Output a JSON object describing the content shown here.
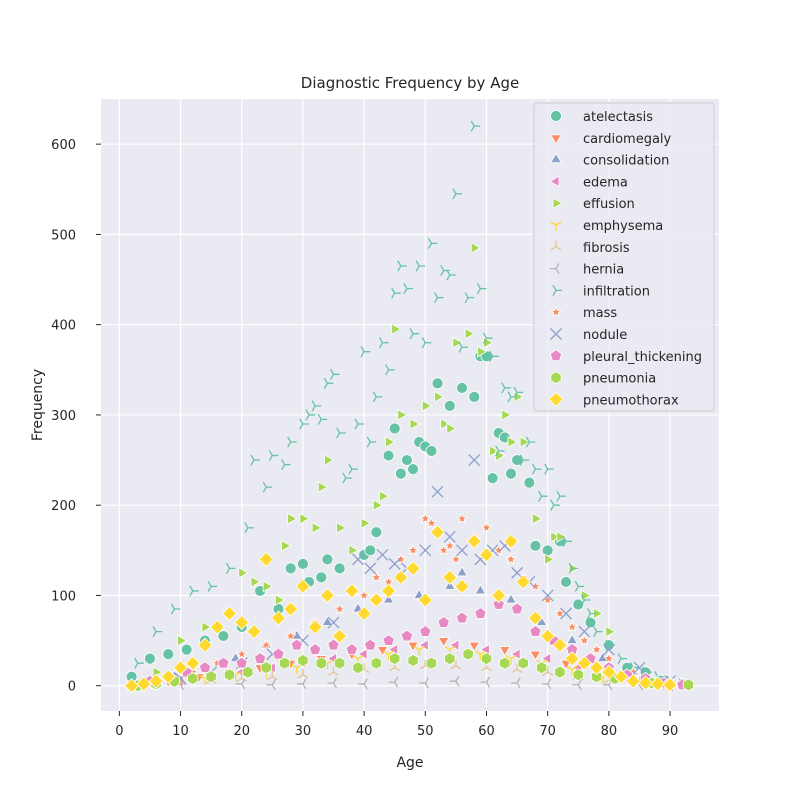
{
  "chart_data": {
    "type": "scatter",
    "title": "Diagnostic Frequency by Age",
    "xlabel": "Age",
    "ylabel": "Frequency",
    "xlim": [
      -3,
      98
    ],
    "ylim": [
      -28,
      650
    ],
    "xticks": [
      0,
      10,
      20,
      30,
      40,
      50,
      60,
      70,
      80,
      90
    ],
    "yticks": [
      0,
      100,
      200,
      300,
      400,
      500,
      600
    ],
    "grid": true,
    "legend": "top-right",
    "series": [
      {
        "name": "atelectasis",
        "marker": "circle",
        "color": "#66c2a5",
        "x": [
          2,
          5,
          8,
          11,
          14,
          17,
          20,
          23,
          26,
          28,
          30,
          31,
          33,
          34,
          36,
          38,
          40,
          41,
          42,
          44,
          45,
          46,
          47,
          48,
          49,
          50,
          51,
          52,
          54,
          56,
          58,
          59,
          60,
          61,
          62,
          63,
          64,
          65,
          67,
          68,
          70,
          72,
          73,
          75,
          77,
          80,
          83,
          86,
          89,
          92
        ],
        "y": [
          10,
          30,
          35,
          40,
          50,
          55,
          65,
          105,
          85,
          130,
          135,
          115,
          120,
          140,
          130,
          105,
          145,
          150,
          170,
          255,
          285,
          235,
          250,
          240,
          270,
          265,
          260,
          335,
          310,
          330,
          320,
          365,
          365,
          230,
          280,
          275,
          235,
          250,
          225,
          155,
          150,
          160,
          115,
          90,
          70,
          45,
          20,
          15,
          5,
          2
        ]
      },
      {
        "name": "cardiomegaly",
        "marker": "triangle-down",
        "color": "#fc8d62",
        "x": [
          3,
          8,
          13,
          18,
          23,
          28,
          33,
          38,
          43,
          48,
          53,
          58,
          63,
          68,
          73,
          78,
          83,
          88
        ],
        "y": [
          2,
          5,
          10,
          15,
          20,
          25,
          30,
          35,
          40,
          45,
          50,
          45,
          40,
          35,
          25,
          15,
          8,
          3
        ]
      },
      {
        "name": "consolidation",
        "marker": "triangle-up",
        "color": "#8da0cb",
        "x": [
          4,
          9,
          14,
          19,
          24,
          29,
          34,
          39,
          44,
          49,
          54,
          56,
          59,
          64,
          69,
          74,
          79,
          84,
          89
        ],
        "y": [
          3,
          10,
          20,
          30,
          45,
          55,
          70,
          85,
          95,
          100,
          110,
          125,
          105,
          95,
          70,
          50,
          30,
          15,
          5
        ]
      },
      {
        "name": "edema",
        "marker": "triangle-left",
        "color": "#e78ac3",
        "x": [
          5,
          10,
          15,
          20,
          25,
          30,
          35,
          40,
          45,
          50,
          55,
          60,
          65,
          70,
          75,
          80,
          85,
          90
        ],
        "y": [
          2,
          5,
          10,
          15,
          20,
          25,
          30,
          35,
          40,
          45,
          45,
          40,
          35,
          30,
          20,
          12,
          6,
          2
        ]
      },
      {
        "name": "effusion",
        "marker": "triangle-right",
        "color": "#a6d854",
        "x": [
          6,
          10,
          14,
          18,
          20,
          22,
          24,
          26,
          27,
          28,
          30,
          32,
          33,
          34,
          36,
          38,
          40,
          42,
          43,
          44,
          45,
          46,
          48,
          50,
          52,
          53,
          54,
          55,
          57,
          58,
          59,
          60,
          61,
          62,
          63,
          64,
          65,
          66,
          68,
          70,
          71,
          72,
          74,
          76,
          78,
          80
        ],
        "y": [
          15,
          50,
          65,
          80,
          125,
          115,
          110,
          95,
          155,
          185,
          185,
          175,
          220,
          250,
          175,
          150,
          180,
          200,
          210,
          270,
          395,
          300,
          290,
          310,
          320,
          290,
          285,
          380,
          390,
          485,
          370,
          380,
          260,
          255,
          300,
          270,
          320,
          270,
          185,
          140,
          165,
          165,
          130,
          100,
          80,
          60
        ]
      },
      {
        "name": "emphysema",
        "marker": "tri-down",
        "color": "#ffd92f",
        "x": [
          4,
          9,
          14,
          19,
          24,
          29,
          34,
          39,
          44,
          49,
          54,
          59,
          64,
          69,
          74,
          79,
          84,
          89
        ],
        "y": [
          2,
          5,
          8,
          12,
          15,
          20,
          25,
          30,
          35,
          40,
          40,
          35,
          30,
          25,
          18,
          10,
          5,
          2
        ]
      },
      {
        "name": "fibrosis",
        "marker": "tri-up",
        "color": "#e5c494",
        "x": [
          5,
          10,
          15,
          20,
          25,
          30,
          35,
          40,
          45,
          50,
          55,
          60,
          65,
          70,
          75,
          80,
          85,
          90
        ],
        "y": [
          2,
          4,
          6,
          8,
          10,
          12,
          15,
          18,
          20,
          22,
          22,
          20,
          18,
          15,
          10,
          6,
          3,
          1
        ]
      },
      {
        "name": "hernia",
        "marker": "tri-left",
        "color": "#b3b3b3",
        "x": [
          10,
          20,
          25,
          30,
          35,
          40,
          45,
          50,
          55,
          60,
          65,
          70,
          75,
          80,
          85,
          90
        ],
        "y": [
          1,
          2,
          1,
          2,
          3,
          2,
          4,
          3,
          5,
          4,
          3,
          2,
          1,
          1,
          1,
          0
        ]
      },
      {
        "name": "infiltration",
        "marker": "tri-right",
        "color": "#66c2a5",
        "x": [
          3,
          6,
          9,
          12,
          15,
          18,
          21,
          22,
          24,
          25,
          27,
          28,
          30,
          31,
          32,
          33,
          34,
          35,
          36,
          37,
          38,
          39,
          40,
          41,
          42,
          43,
          44,
          45,
          46,
          47,
          48,
          49,
          50,
          51,
          52,
          53,
          54,
          55,
          56,
          57,
          58,
          59,
          60,
          61,
          62,
          63,
          64,
          65,
          66,
          67,
          68,
          69,
          70,
          71,
          72,
          73,
          74,
          75,
          76,
          77,
          78,
          80,
          82,
          84,
          86,
          88,
          90,
          92
        ],
        "y": [
          25,
          60,
          85,
          105,
          110,
          130,
          175,
          250,
          220,
          255,
          245,
          270,
          290,
          300,
          310,
          295,
          335,
          345,
          280,
          230,
          240,
          290,
          370,
          270,
          320,
          380,
          350,
          435,
          465,
          440,
          390,
          465,
          380,
          490,
          430,
          460,
          455,
          545,
          375,
          430,
          620,
          440,
          385,
          365,
          260,
          330,
          320,
          325,
          250,
          270,
          240,
          210,
          240,
          200,
          210,
          160,
          130,
          110,
          95,
          80,
          60,
          45,
          30,
          20,
          15,
          10,
          5,
          2
        ]
      },
      {
        "name": "mass",
        "marker": "star",
        "color": "#fc8d62",
        "x": [
          4,
          8,
          12,
          16,
          20,
          24,
          28,
          32,
          36,
          40,
          42,
          44,
          46,
          48,
          50,
          51,
          52,
          53,
          54,
          55,
          56,
          58,
          60,
          62,
          64,
          66,
          68,
          70,
          72,
          74,
          76,
          78,
          80,
          84,
          88
        ],
        "y": [
          2,
          8,
          15,
          25,
          35,
          45,
          55,
          70,
          85,
          100,
          120,
          115,
          140,
          150,
          185,
          180,
          170,
          150,
          155,
          140,
          185,
          165,
          175,
          150,
          140,
          120,
          110,
          95,
          80,
          65,
          50,
          40,
          30,
          15,
          5
        ]
      },
      {
        "name": "nodule",
        "marker": "x",
        "color": "#8da0cb",
        "x": [
          5,
          10,
          15,
          20,
          25,
          30,
          35,
          39,
          41,
          43,
          45,
          47,
          50,
          52,
          54,
          56,
          58,
          59,
          61,
          63,
          65,
          67,
          70,
          73,
          76,
          80,
          85,
          90
        ],
        "y": [
          3,
          8,
          15,
          25,
          35,
          50,
          70,
          140,
          130,
          145,
          135,
          130,
          150,
          215,
          165,
          150,
          250,
          140,
          150,
          155,
          125,
          115,
          100,
          80,
          60,
          40,
          20,
          5
        ]
      },
      {
        "name": "pleural_thickening",
        "marker": "pentagon",
        "color": "#e78ac3",
        "x": [
          2,
          5,
          8,
          11,
          14,
          17,
          20,
          23,
          26,
          29,
          32,
          35,
          38,
          41,
          44,
          47,
          50,
          53,
          56,
          59,
          62,
          65,
          68,
          71,
          74,
          77,
          80,
          83,
          86,
          89,
          92
        ],
        "y": [
          0,
          5,
          10,
          15,
          20,
          25,
          25,
          30,
          35,
          45,
          40,
          45,
          40,
          45,
          50,
          55,
          60,
          70,
          75,
          80,
          90,
          85,
          60,
          50,
          40,
          30,
          20,
          12,
          8,
          3,
          1
        ]
      },
      {
        "name": "pneumonia",
        "marker": "hexagon",
        "color": "#a6d854",
        "x": [
          3,
          6,
          9,
          12,
          15,
          18,
          21,
          24,
          27,
          30,
          33,
          36,
          39,
          42,
          45,
          48,
          51,
          54,
          57,
          60,
          63,
          66,
          69,
          72,
          75,
          78,
          81,
          84,
          87,
          90,
          93
        ],
        "y": [
          0,
          2,
          5,
          8,
          10,
          12,
          15,
          20,
          25,
          28,
          25,
          25,
          20,
          25,
          30,
          28,
          25,
          30,
          35,
          30,
          25,
          25,
          20,
          15,
          12,
          10,
          8,
          5,
          3,
          2,
          1
        ]
      },
      {
        "name": "pneumothorax",
        "marker": "diamond",
        "color": "#ffd92f",
        "x": [
          2,
          4,
          6,
          8,
          10,
          12,
          14,
          16,
          18,
          20,
          22,
          24,
          26,
          28,
          30,
          32,
          34,
          36,
          38,
          40,
          42,
          44,
          46,
          48,
          50,
          52,
          54,
          56,
          58,
          60,
          62,
          64,
          66,
          68,
          70,
          72,
          74,
          76,
          78,
          80,
          82,
          84,
          86,
          88,
          90
        ],
        "y": [
          0,
          2,
          5,
          10,
          20,
          25,
          45,
          65,
          80,
          70,
          60,
          140,
          75,
          85,
          110,
          65,
          100,
          55,
          105,
          80,
          95,
          105,
          120,
          130,
          95,
          170,
          120,
          110,
          160,
          145,
          100,
          160,
          115,
          75,
          55,
          45,
          30,
          25,
          20,
          15,
          10,
          5,
          3,
          2,
          1
        ]
      }
    ]
  }
}
